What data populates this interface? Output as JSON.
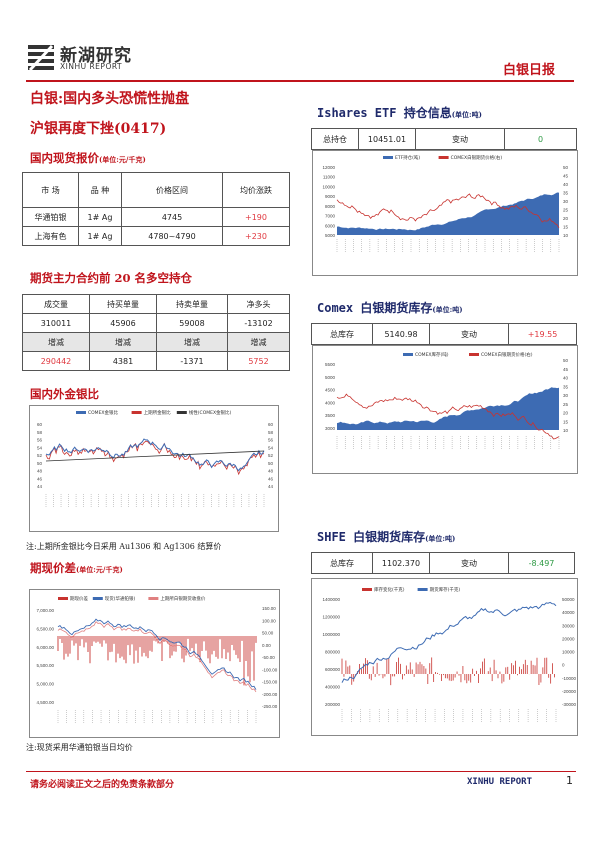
{
  "header": {
    "logo_cn": "新湖研究",
    "logo_en": "XINHU REPORT",
    "report_type": "白银日报"
  },
  "headline": {
    "line1": "白银:国内多头恐慌性抛盘",
    "line2": "沪银再度下挫(0417)"
  },
  "spot": {
    "title": "国内现货报价",
    "unit": "(单位:元/千克)",
    "headers": [
      "市 场",
      "品 种",
      "价格区间",
      "均价涨跌"
    ],
    "rows": [
      [
        "华通铂银",
        "1# Ag",
        "4745",
        "+190"
      ],
      [
        "上海有色",
        "1# Ag",
        "4780~4790",
        "+230"
      ]
    ]
  },
  "futures": {
    "title": "期货主力合约前 20 名多空持仓",
    "headers1": [
      "成交量",
      "持买单量",
      "持卖单量",
      "净多头"
    ],
    "values1": [
      "310011",
      "45906",
      "59008",
      "-13102"
    ],
    "headers2": [
      "增减",
      "增减",
      "增减",
      "增减"
    ],
    "values2": [
      "290442",
      "4381",
      "-1371",
      "5752"
    ]
  },
  "ratio": {
    "title": "国内外金银比",
    "legend": [
      "COMEX金银比",
      "上期所金银比",
      "线性(COMEX金银比)"
    ],
    "yticks": [
      "60",
      "58",
      "56",
      "54",
      "52",
      "50",
      "48",
      "46",
      "44"
    ],
    "note": "注:上期所金银比今日采用 Au1306 和 Ag1306 结算价"
  },
  "spread": {
    "title": "期现价差",
    "unit": "(单位:元/千克)",
    "legend": [
      "期现价差",
      "现货(华通铂银)",
      "上期所白银期货收盘价"
    ],
    "yleft": [
      "7,000.00",
      "6,500.00",
      "6,000.00",
      "5,500.00",
      "5,000.00",
      "4,500.00"
    ],
    "yright": [
      "150.00",
      "100.00",
      "50.00",
      "0.00",
      "-50.00",
      "-100.00",
      "-150.00",
      "-200.00",
      "-250.00"
    ],
    "note": "注:现货采用华通铂银当日均价"
  },
  "etf": {
    "title": "Ishares ETF 持仓信息",
    "unit": "(单位:吨)",
    "label_total": "总持仓",
    "total": "10451.01",
    "label_change": "变动",
    "change": "0",
    "legend": [
      "ETF持仓(吨)",
      "COMEX白银期货价格(右)"
    ],
    "yleft": [
      "12000",
      "11000",
      "10000",
      "9000",
      "8000",
      "7000",
      "6000",
      "5000"
    ],
    "yright": [
      "50",
      "45",
      "40",
      "35",
      "30",
      "25",
      "20",
      "15",
      "10"
    ]
  },
  "comex": {
    "title": "Comex 白银期货库存",
    "unit": "(单位:吨)",
    "label_total": "总库存",
    "total": "5140.98",
    "label_change": "变动",
    "change": "+19.55",
    "legend": [
      "COMEX库存(吨)",
      "COMEX白银期货价格(右)"
    ],
    "yleft": [
      "5500",
      "5000",
      "4500",
      "4000",
      "3500",
      "3000"
    ],
    "yright": [
      "50",
      "45",
      "40",
      "35",
      "30",
      "25",
      "20",
      "15",
      "10"
    ]
  },
  "shfe": {
    "title": "SHFE 白银期货库存",
    "unit": "(单位:吨)",
    "label_total": "总库存",
    "total": "1102.370",
    "label_change": "变动",
    "change": "-8.497",
    "legend": [
      "库存变化(千克)",
      "期货库存(千克)"
    ],
    "yleft": [
      "1400000",
      "1200000",
      "1000000",
      "800000",
      "600000",
      "400000",
      "200000"
    ],
    "yright": [
      "50000",
      "40000",
      "30000",
      "20000",
      "10000",
      "0",
      "-10000",
      "-20000",
      "-30000"
    ]
  },
  "footer": {
    "disclaimer": "请务必阅读正文之后的免责条款部分",
    "brand": "XINHU REPORT",
    "page": "1"
  },
  "colors": {
    "red": "#c0141c",
    "navy": "#1f2a6b",
    "blue_area": "#3d6bb3",
    "red_line": "#c8332f",
    "up": "#e0383f",
    "down": "#2e9a44"
  }
}
